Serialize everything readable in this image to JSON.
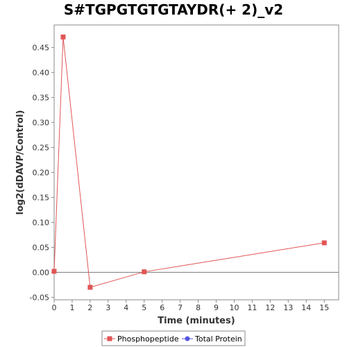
{
  "chart_data": {
    "type": "line",
    "title": "S#TGPGTGTGTAYDR(+ 2)_v2",
    "xlabel": "Time (minutes)",
    "ylabel": "log2(dDAVP/Control)",
    "xlim": [
      0,
      15.8
    ],
    "ylim": [
      -0.055,
      0.495
    ],
    "x_ticks": [
      0,
      1,
      2,
      3,
      4,
      5,
      6,
      7,
      8,
      9,
      10,
      11,
      12,
      13,
      14,
      15
    ],
    "y_ticks": [
      -0.05,
      0.0,
      0.05,
      0.1,
      0.15,
      0.2,
      0.25,
      0.3,
      0.35,
      0.4,
      0.45
    ],
    "y_tick_labels": [
      "-0.05",
      "0.00",
      "0.05",
      "0.10",
      "0.15",
      "0.20",
      "0.25",
      "0.30",
      "0.35",
      "0.40",
      "0.45"
    ],
    "grid": false,
    "zero_line": true,
    "legend_position": "bottom",
    "series": [
      {
        "name": "Phosphopeptide",
        "color": "#e05555",
        "marker": "square",
        "points": [
          {
            "x": 0,
            "y": 0.002
          },
          {
            "x": 0.5,
            "y": 0.471
          },
          {
            "x": 2,
            "y": -0.03
          },
          {
            "x": 5,
            "y": 0.001
          },
          {
            "x": 15,
            "y": 0.059
          }
        ]
      },
      {
        "name": "Total Protein",
        "color": "#5555e0",
        "marker": "circle",
        "points": []
      }
    ]
  }
}
